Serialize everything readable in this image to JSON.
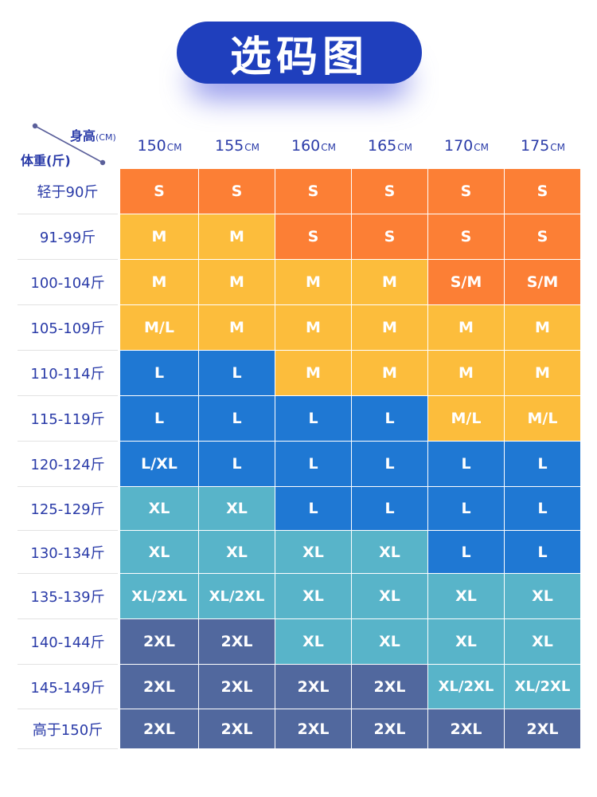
{
  "title": "选码图",
  "corner": {
    "height_label": "身高",
    "height_unit": "(CM)",
    "weight_label": "体重(斤)"
  },
  "heights": [
    {
      "value": "150",
      "unit": "CM"
    },
    {
      "value": "155",
      "unit": "CM"
    },
    {
      "value": "160",
      "unit": "CM"
    },
    {
      "value": "165",
      "unit": "CM"
    },
    {
      "value": "170",
      "unit": "CM"
    },
    {
      "value": "175",
      "unit": "CM"
    }
  ],
  "weights": [
    "轻于90斤",
    "91-99斤",
    "100-104斤",
    "105-109斤",
    "110-114斤",
    "115-119斤",
    "120-124斤",
    "125-129斤",
    "130-134斤",
    "135-139斤",
    "140-144斤",
    "145-149斤",
    "高于150斤"
  ],
  "sizes": [
    [
      "S",
      "S",
      "S",
      "S",
      "S",
      "S"
    ],
    [
      "M",
      "M",
      "S",
      "S",
      "S",
      "S"
    ],
    [
      "M",
      "M",
      "M",
      "M",
      "S/M",
      "S/M"
    ],
    [
      "M/L",
      "M",
      "M",
      "M",
      "M",
      "M"
    ],
    [
      "L",
      "L",
      "M",
      "M",
      "M",
      "M"
    ],
    [
      "L",
      "L",
      "L",
      "L",
      "M/L",
      "M/L"
    ],
    [
      "L/XL",
      "L",
      "L",
      "L",
      "L",
      "L"
    ],
    [
      "XL",
      "XL",
      "L",
      "L",
      "L",
      "L"
    ],
    [
      "XL",
      "XL",
      "XL",
      "XL",
      "L",
      "L"
    ],
    [
      "XL/2XL",
      "XL/2XL",
      "XL",
      "XL",
      "XL",
      "XL"
    ],
    [
      "2XL",
      "2XL",
      "XL",
      "XL",
      "XL",
      "XL"
    ],
    [
      "2XL",
      "2XL",
      "2XL",
      "2XL",
      "XL/2XL",
      "XL/2XL"
    ],
    [
      "2XL",
      "2XL",
      "2XL",
      "2XL",
      "2XL",
      "2XL"
    ]
  ],
  "colors": {
    "title_bg": "#1f3fbd",
    "label_text": "#2a3ba8",
    "S": "#fc7f35",
    "S/M": "#fc7f35",
    "M": "#fcbd3c",
    "M/L_narrow": "#fcbd3c",
    "L": "#1f78d3",
    "L/XL": "#1f78d3",
    "XL": "#58b4c9",
    "XL/2XL": "#58b4c9",
    "2XL": "#51689e"
  }
}
